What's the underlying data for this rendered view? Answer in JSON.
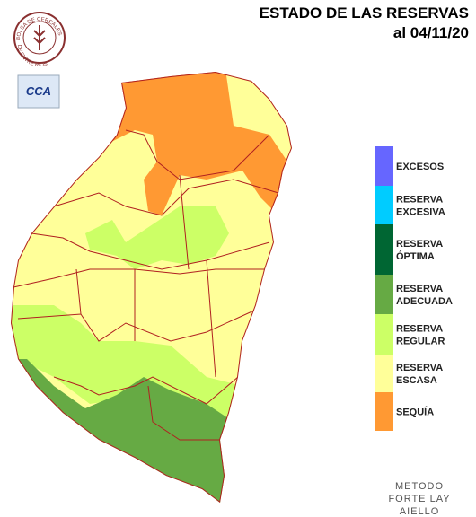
{
  "header": {
    "title": "ESTADO DE LAS RESERVAS",
    "date": "al 04/11/20"
  },
  "logo": {
    "top": "BOLSA DE CEREALES",
    "bottom": "DE ENTRE RIOS",
    "badge": "CCA"
  },
  "legend": [
    {
      "lines": [
        "EXCESOS"
      ],
      "color": "#6666ff"
    },
    {
      "lines": [
        "RESERVA",
        "EXCESIVA"
      ],
      "color": "#00ccff"
    },
    {
      "lines": [
        "RESERVA",
        "ÓPTIMA"
      ],
      "color": "#006633"
    },
    {
      "lines": [
        "RESERVA",
        "ADECUADA"
      ],
      "color": "#66aa44"
    },
    {
      "lines": [
        "RESERVA",
        "REGULAR"
      ],
      "color": "#ccff66"
    },
    {
      "lines": [
        "RESERVA",
        "ESCASA"
      ],
      "color": "#ffff99"
    },
    {
      "lines": [
        "SEQUÍA"
      ],
      "color": "#ff9933"
    }
  ],
  "method": [
    "METODO",
    "FORTE LAY",
    "AIELLO"
  ]
}
